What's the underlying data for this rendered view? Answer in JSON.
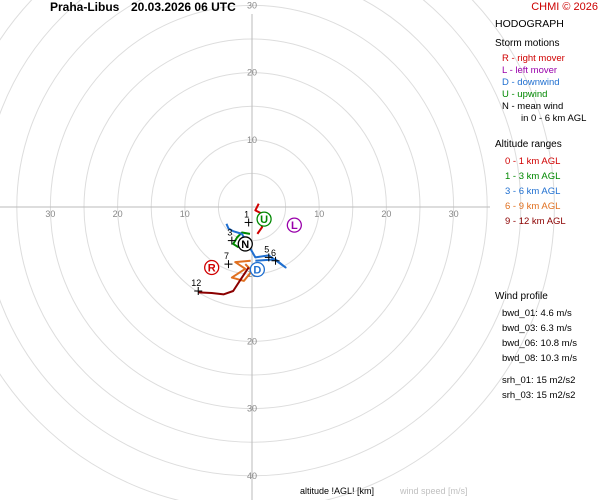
{
  "header": {
    "station": "Praha-Libus",
    "datetime": "20.03.2026 06 UTC",
    "copyright": "CHMI © 2026"
  },
  "panel": {
    "title": "HODOGRAPH",
    "storm_title": "Storm motions",
    "storm_items": [
      {
        "text": "R - right mover",
        "color": "#d00000"
      },
      {
        "text": "L - left mover",
        "color": "#9900aa"
      },
      {
        "text": "D - downwind",
        "color": "#1f6fd0"
      },
      {
        "text": "U - upwind",
        "color": "#008800"
      },
      {
        "text": "N - mean wind",
        "color": "#000000"
      }
    ],
    "mean_wind_note": "in 0 - 6 km AGL",
    "alt_title": "Altitude ranges",
    "alt_items": [
      {
        "text": "0 - 1 km AGL",
        "color": "#d00000"
      },
      {
        "text": "1 - 3 km AGL",
        "color": "#008800"
      },
      {
        "text": "3 - 6 km AGL",
        "color": "#1f6fd0"
      },
      {
        "text": "6 - 9 km AGL",
        "color": "#e07020"
      },
      {
        "text": "9 - 12 km AGL",
        "color": "#8b0000"
      }
    ],
    "wind_title": "Wind profile",
    "bwd": [
      "bwd_01: 4.6 m/s",
      "bwd_03: 6.3 m/s",
      "bwd_06: 10.8 m/s",
      "bwd_08: 10.3 m/s"
    ],
    "srh": [
      "srh_01: 15 m2/s2",
      "srh_03: 15 m2/s2"
    ]
  },
  "footer": {
    "altitude_label": "altitude !AGL! [km]",
    "speed_label": "wind speed [m/s]"
  },
  "chart_data": {
    "type": "line",
    "axes": {
      "tick_labels": [
        "10",
        "20",
        "30",
        "40"
      ],
      "range": 40,
      "grid": "concentric rings every 5 m/s"
    },
    "hodograph_km_labels": [
      {
        "label": "1",
        "u": -0.5,
        "v": -2.3
      },
      {
        "label": "3",
        "u": -3.0,
        "v": -5.0
      },
      {
        "label": "5",
        "u": 2.5,
        "v": -7.5
      },
      {
        "label": "6",
        "u": 3.5,
        "v": -8.0
      },
      {
        "label": "7",
        "u": -3.5,
        "v": -8.5
      },
      {
        "label": "12",
        "u": -8.0,
        "v": -12.5
      }
    ],
    "series": [
      {
        "range": "0 - 1 km AGL",
        "color": "#d00000",
        "points": [
          [
            1.0,
            0.5
          ],
          [
            0.5,
            -0.5
          ],
          [
            1.5,
            -1.0
          ],
          [
            1.2,
            -2.0
          ],
          [
            1.5,
            -3.0
          ],
          [
            0.8,
            -4.0
          ]
        ]
      },
      {
        "range": "1 - 3 km AGL",
        "color": "#008800",
        "points": [
          [
            -0.3,
            -4.0
          ],
          [
            -1.5,
            -3.8
          ],
          [
            -2.2,
            -4.5
          ],
          [
            -2.8,
            -5.5
          ],
          [
            -2.0,
            -6.0
          ]
        ]
      },
      {
        "range": "3 - 6 km AGL",
        "color": "#1f6fd0",
        "points": [
          [
            -3.8,
            -2.5
          ],
          [
            -3.5,
            -3.2
          ],
          [
            -2.8,
            -3.6
          ],
          [
            -1.5,
            -4.0
          ],
          [
            0.5,
            -7.5
          ],
          [
            2.5,
            -7.2
          ],
          [
            5.0,
            -9.0
          ],
          [
            3.5,
            -7.8
          ],
          [
            0.5,
            -8.0
          ]
        ]
      },
      {
        "range": "6 - 9 km AGL",
        "color": "#e07020",
        "points": [
          [
            -0.2,
            -8.0
          ],
          [
            -2.5,
            -8.2
          ],
          [
            -1.0,
            -9.2
          ],
          [
            -3.0,
            -10.5
          ],
          [
            -1.2,
            -11.0
          ],
          [
            0.0,
            -9.5
          ],
          [
            -1.0,
            -8.5
          ]
        ]
      },
      {
        "range": "9 - 12 km AGL",
        "color": "#8b0000",
        "points": [
          [
            -0.5,
            -9.0
          ],
          [
            -1.5,
            -10.5
          ],
          [
            -2.8,
            -12.5
          ],
          [
            -4.2,
            -13.0
          ],
          [
            -6.0,
            -12.8
          ],
          [
            -8.0,
            -12.7
          ]
        ]
      }
    ],
    "storm_motions": [
      {
        "label": "R",
        "u": -6.0,
        "v": -9.0,
        "color": "#d00000"
      },
      {
        "label": "L",
        "u": 6.3,
        "v": -2.7,
        "color": "#9900aa"
      },
      {
        "label": "D",
        "u": 0.8,
        "v": -9.3,
        "color": "#1f6fd0"
      },
      {
        "label": "U",
        "u": 1.8,
        "v": -1.8,
        "color": "#008800"
      },
      {
        "label": "N",
        "u": -1.0,
        "v": -5.5,
        "color": "#000000"
      }
    ]
  }
}
